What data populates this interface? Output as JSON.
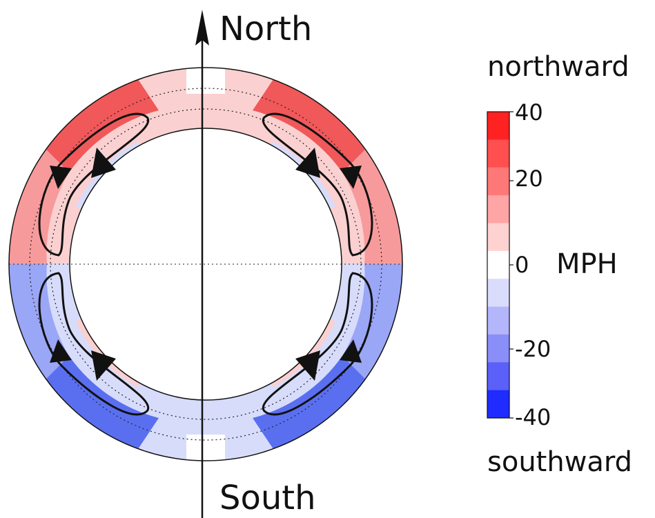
{
  "labels": {
    "north": "North",
    "south": "South",
    "northward": "northward",
    "southward": "southward",
    "unit": "MPH"
  },
  "colorbar": {
    "tick_labels": [
      "40",
      "20",
      "0",
      "-20",
      "-40"
    ],
    "bands": [
      "#ff2222",
      "#ff4f4f",
      "#ff7878",
      "#ffa5a5",
      "#ffd2d2",
      "#ffffff",
      "#dadcfb",
      "#b3b6fa",
      "#8a8ef9",
      "#5a60f8",
      "#1f2bff"
    ]
  },
  "colors": {
    "outline": "#111111",
    "red_strong": "#f0585a",
    "red_mid": "#f79a9b",
    "red_light": "#fbd0d0",
    "blue_strong": "#5a6ff0",
    "blue_mid": "#9aa6f6",
    "blue_light": "#d7dcfb"
  }
}
